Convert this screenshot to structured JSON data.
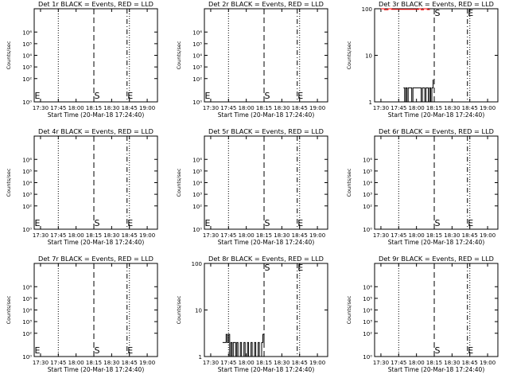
{
  "chart_data": [
    {
      "type": "line",
      "title": "Det 1r BLACK = Events, RED = LLD",
      "xlabel": "Start Time (20-Mar-18 17:24:40)",
      "ylabel": "Counts/sec",
      "scale": "log",
      "ylim": [
        1,
        100000000
      ],
      "yticks": [
        "10⁰",
        "10²",
        "10³",
        "10⁴",
        "10⁵",
        "10⁶"
      ],
      "xticks": [
        "17:30",
        "17:45",
        "18:00",
        "18:15",
        "18:30",
        "18:45",
        "19:00"
      ],
      "series": [],
      "markers": [
        {
          "label": "S",
          "time": "18:15"
        },
        {
          "label": "E",
          "time": "18:43"
        }
      ]
    },
    {
      "type": "line",
      "title": "Det 2r BLACK = Events, RED = LLD",
      "xlabel": "Start Time (20-Mar-18 17:24:40)",
      "ylabel": "Counts/sec",
      "scale": "log",
      "ylim": [
        1,
        100000000
      ],
      "yticks": [
        "10⁰",
        "10²",
        "10³",
        "10⁴",
        "10⁵",
        "10⁶"
      ],
      "xticks": [
        "17:30",
        "17:45",
        "18:00",
        "18:15",
        "18:30",
        "18:45",
        "19:00"
      ],
      "series": [],
      "markers": [
        {
          "label": "S",
          "time": "18:15"
        },
        {
          "label": "E",
          "time": "18:43"
        }
      ]
    },
    {
      "type": "line",
      "title": "Det 3r BLACK = Events, RED = LLD",
      "xlabel": "Start Time (20-Mar-18 17:24:40)",
      "ylabel": "Counts/sec",
      "scale": "log",
      "ylim": [
        1,
        100
      ],
      "yticks": [
        "1",
        "10",
        "100"
      ],
      "xticks": [
        "17:30",
        "17:45",
        "18:00",
        "18:15",
        "18:30",
        "18:45",
        "19:00"
      ],
      "series": [
        {
          "color": "#000000",
          "x": [
            "17:49",
            "17:50",
            "17:51",
            "17:52",
            "17:53",
            "17:55",
            "17:56",
            "17:57",
            "18:03",
            "18:04",
            "18:05",
            "18:06",
            "18:07",
            "18:08",
            "18:10",
            "18:11",
            "18:12",
            "18:13",
            "18:14"
          ],
          "y": [
            2,
            1,
            2,
            1,
            2,
            2,
            1,
            2,
            2,
            1,
            2,
            2,
            1,
            2,
            1,
            2,
            1,
            2,
            3
          ]
        },
        {
          "color": "#ff0000",
          "x": [
            "17:30",
            "17:33",
            "17:36",
            "17:39",
            "18:02",
            "18:04",
            "18:06",
            "18:09",
            "18:11"
          ],
          "y": [
            100,
            95,
            100,
            97,
            100,
            95,
            100,
            96,
            100
          ]
        }
      ],
      "markers": [
        {
          "label": "S",
          "time": "18:15"
        },
        {
          "label": "E",
          "time": "18:43"
        }
      ]
    },
    {
      "type": "line",
      "title": "Det 4r BLACK = Events, RED = LLD",
      "xlabel": "Start Time (20-Mar-18 17:24:40)",
      "ylabel": "Counts/sec",
      "scale": "log",
      "ylim": [
        1,
        100000000
      ],
      "yticks": [
        "10⁰",
        "10²",
        "10³",
        "10⁴",
        "10⁵",
        "10⁶"
      ],
      "xticks": [
        "17:30",
        "17:45",
        "18:00",
        "18:15",
        "18:30",
        "18:45",
        "19:00"
      ],
      "series": [],
      "markers": [
        {
          "label": "S",
          "time": "18:15"
        },
        {
          "label": "E",
          "time": "18:43"
        }
      ]
    },
    {
      "type": "line",
      "title": "Det 5r BLACK = Events, RED = LLD",
      "xlabel": "Start Time (20-Mar-18 17:24:40)",
      "ylabel": "Counts/sec",
      "scale": "log",
      "ylim": [
        1,
        100000000
      ],
      "yticks": [
        "10⁰",
        "10²",
        "10³",
        "10⁴",
        "10⁵",
        "10⁶"
      ],
      "xticks": [
        "17:30",
        "17:45",
        "18:00",
        "18:15",
        "18:30",
        "18:45",
        "19:00"
      ],
      "series": [],
      "markers": [
        {
          "label": "S",
          "time": "18:15"
        },
        {
          "label": "E",
          "time": "18:43"
        }
      ]
    },
    {
      "type": "line",
      "title": "Det 6r BLACK = Events, RED = LLD",
      "xlabel": "Start Time (20-Mar-18 17:24:40)",
      "ylabel": "Counts/sec",
      "scale": "log",
      "ylim": [
        1,
        100000000
      ],
      "yticks": [
        "10⁰",
        "10²",
        "10³",
        "10⁴",
        "10⁵",
        "10⁶"
      ],
      "xticks": [
        "17:30",
        "17:45",
        "18:00",
        "18:15",
        "18:30",
        "18:45",
        "19:00"
      ],
      "series": [],
      "markers": [
        {
          "label": "S",
          "time": "18:15"
        },
        {
          "label": "E",
          "time": "18:43"
        }
      ]
    },
    {
      "type": "line",
      "title": "Det 7r BLACK = Events, RED = LLD",
      "xlabel": "Start Time (20-Mar-18 17:24:40)",
      "ylabel": "Counts/sec",
      "scale": "log",
      "ylim": [
        1,
        100000000
      ],
      "yticks": [
        "10⁰",
        "10²",
        "10³",
        "10⁴",
        "10⁵",
        "10⁶"
      ],
      "xticks": [
        "17:30",
        "17:45",
        "18:00",
        "18:15",
        "18:30",
        "18:45",
        "19:00"
      ],
      "series": [],
      "markers": [
        {
          "label": "S",
          "time": "18:15"
        },
        {
          "label": "E",
          "time": "18:43"
        }
      ]
    },
    {
      "type": "line",
      "title": "Det 8r BLACK = Events, RED = LLD",
      "xlabel": "Start Time (20-Mar-18 17:24:40)",
      "ylabel": "Counts/sec",
      "scale": "log",
      "ylim": [
        1,
        100
      ],
      "yticks": [
        "1",
        "10",
        "100"
      ],
      "xticks": [
        "17:30",
        "17:45",
        "18:00",
        "18:15",
        "18:30",
        "18:45",
        "19:00"
      ],
      "series": [
        {
          "color": "#000000",
          "x": [
            "17:40",
            "17:42",
            "17:43",
            "17:44",
            "17:45",
            "17:46",
            "17:47",
            "17:48",
            "17:49",
            "17:51",
            "17:52",
            "17:53",
            "17:55",
            "17:56",
            "17:58",
            "17:59",
            "18:01",
            "18:02",
            "18:04",
            "18:05",
            "18:07",
            "18:08",
            "18:10",
            "18:11",
            "18:13",
            "18:14",
            "18:15"
          ],
          "y": [
            2,
            2,
            3,
            2,
            3,
            1,
            2,
            1,
            2,
            1,
            2,
            1,
            2,
            1,
            2,
            1,
            2,
            1,
            2,
            1,
            2,
            1,
            2,
            1,
            2,
            3,
            2
          ]
        }
      ],
      "markers": [
        {
          "label": "S",
          "time": "18:15"
        },
        {
          "label": "E",
          "time": "18:43"
        }
      ]
    },
    {
      "type": "line",
      "title": "Det 9r BLACK = Events, RED = LLD",
      "xlabel": "Start Time (20-Mar-18 17:24:40)",
      "ylabel": "Counts/sec",
      "scale": "log",
      "ylim": [
        1,
        100000000
      ],
      "yticks": [
        "10⁰",
        "10²",
        "10³",
        "10⁴",
        "10⁵",
        "10⁶"
      ],
      "xticks": [
        "17:30",
        "17:45",
        "18:00",
        "18:15",
        "18:30",
        "18:45",
        "19:00"
      ],
      "series": [],
      "markers": [
        {
          "label": "S",
          "time": "18:15"
        },
        {
          "label": "E",
          "time": "18:43"
        }
      ]
    }
  ]
}
